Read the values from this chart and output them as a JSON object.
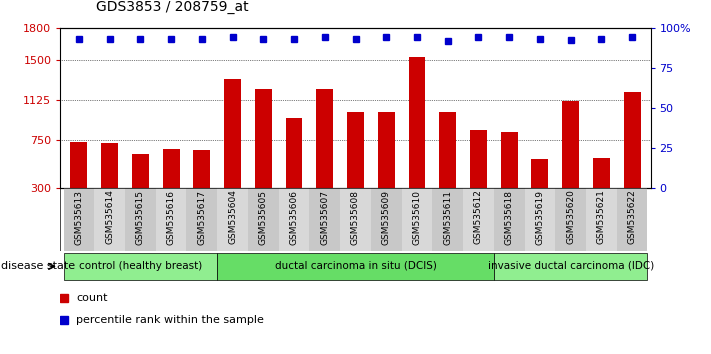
{
  "title": "GDS3853 / 208759_at",
  "samples": [
    "GSM535613",
    "GSM535614",
    "GSM535615",
    "GSM535616",
    "GSM535617",
    "GSM535604",
    "GSM535605",
    "GSM535606",
    "GSM535607",
    "GSM535608",
    "GSM535609",
    "GSM535610",
    "GSM535611",
    "GSM535612",
    "GSM535618",
    "GSM535619",
    "GSM535620",
    "GSM535621",
    "GSM535622"
  ],
  "counts": [
    730,
    720,
    620,
    660,
    655,
    1320,
    1230,
    960,
    1230,
    1010,
    1010,
    1530,
    1010,
    840,
    820,
    570,
    1120,
    580,
    1200
  ],
  "pct_values": [
    1700,
    1700,
    1700,
    1700,
    1700,
    1720,
    1700,
    1700,
    1720,
    1700,
    1720,
    1720,
    1680,
    1720,
    1720,
    1700,
    1690,
    1700,
    1720
  ],
  "groups": [
    {
      "label": "control (healthy breast)",
      "start": 0,
      "end": 5
    },
    {
      "label": "ductal carcinoma in situ (DCIS)",
      "start": 5,
      "end": 14
    },
    {
      "label": "invasive ductal carcinoma (IDC)",
      "start": 14,
      "end": 19
    }
  ],
  "bar_color": "#cc0000",
  "dot_color": "#0000cc",
  "ylim_left": [
    300,
    1800
  ],
  "ylim_right": [
    0,
    100
  ],
  "yticks_left": [
    300,
    750,
    1125,
    1500,
    1800
  ],
  "yticks_right": [
    0,
    25,
    50,
    75,
    100
  ],
  "legend_count_label": "count",
  "legend_pct_label": "percentile rank within the sample",
  "disease_state_label": "disease state"
}
